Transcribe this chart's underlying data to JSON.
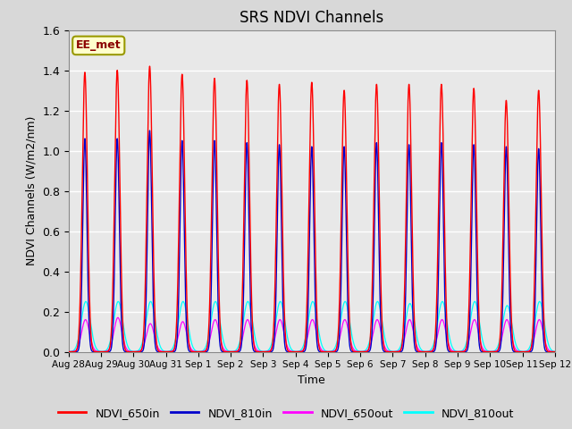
{
  "title": "SRS NDVI Channels",
  "xlabel": "Time",
  "ylabel": "NDVI Channels (W/m2/nm)",
  "ylim": [
    0,
    1.6
  ],
  "annotation_text": "EE_met",
  "legend_entries": [
    "NDVI_650in",
    "NDVI_810in",
    "NDVI_650out",
    "NDVI_810out"
  ],
  "line_colors": [
    "red",
    "#0000cc",
    "magenta",
    "cyan"
  ],
  "background_color": "#d8d8d8",
  "axes_bg_color": "#e8e8e8",
  "num_days": 15,
  "peaks_650in": [
    1.39,
    1.4,
    1.42,
    1.38,
    1.36,
    1.35,
    1.33,
    1.34,
    1.3,
    1.33,
    1.33,
    1.33,
    1.31,
    1.25,
    1.3
  ],
  "peaks_810in": [
    1.06,
    1.06,
    1.1,
    1.05,
    1.05,
    1.04,
    1.03,
    1.02,
    1.02,
    1.04,
    1.03,
    1.04,
    1.03,
    1.02,
    1.01
  ],
  "peaks_650out": [
    0.16,
    0.17,
    0.14,
    0.15,
    0.16,
    0.16,
    0.16,
    0.16,
    0.16,
    0.16,
    0.16,
    0.16,
    0.16,
    0.16,
    0.16
  ],
  "peaks_810out": [
    0.25,
    0.25,
    0.25,
    0.25,
    0.25,
    0.25,
    0.25,
    0.25,
    0.25,
    0.25,
    0.24,
    0.25,
    0.25,
    0.23,
    0.25
  ],
  "points_per_day": 500,
  "tick_labels": [
    "Aug 28",
    "Aug 29",
    "Aug 30",
    "Aug 31",
    "Sep 1",
    "Sep 2",
    "Sep 3",
    "Sep 4",
    "Sep 5",
    "Sep 6",
    "Sep 7",
    "Sep 8",
    "Sep 9",
    "Sep 10",
    "Sep 11",
    "Sep 12"
  ]
}
